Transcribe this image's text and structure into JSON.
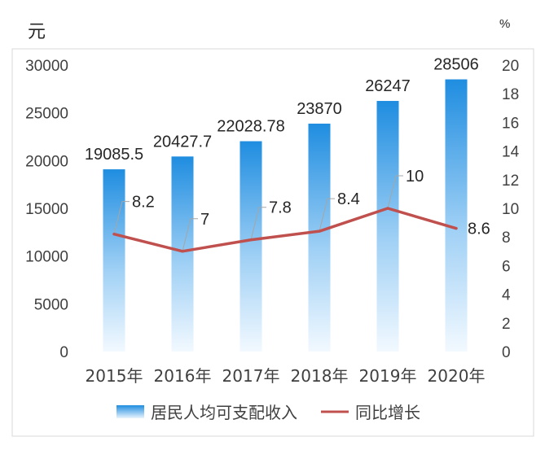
{
  "chart_data": {
    "type": "bar+line",
    "categories": [
      "2015年",
      "2016年",
      "2017年",
      "2018年",
      "2019年",
      "2020年"
    ],
    "series": [
      {
        "name": "居民人均可支配收入",
        "type": "bar",
        "axis": "left",
        "values": [
          19085.5,
          20427.7,
          22028.78,
          23870,
          26247,
          28506
        ],
        "labels": [
          "19085.5",
          "20427.7",
          "22028.78",
          "23870",
          "26247",
          "28506"
        ]
      },
      {
        "name": "同比增长",
        "type": "line",
        "axis": "right",
        "values": [
          8.2,
          7,
          7.8,
          8.4,
          10,
          8.6
        ],
        "labels": [
          "8.2",
          "7",
          "7.8",
          "8.4",
          "10",
          "8.6"
        ]
      }
    ],
    "y_left": {
      "unit": "元",
      "min": 0,
      "max": 30000,
      "ticks": [
        0,
        5000,
        10000,
        15000,
        20000,
        25000,
        30000
      ]
    },
    "y_right": {
      "unit": "%",
      "min": 0,
      "max": 20,
      "ticks": [
        0,
        2,
        4,
        6,
        8,
        10,
        12,
        14,
        16,
        18,
        20
      ]
    },
    "legend_position": "bottom",
    "grid": false,
    "colors": {
      "bar_top": "#1f8de0",
      "bar_bottom": "#f2f9ff",
      "line": "#c0504d",
      "leader": "#a6a6a6",
      "border": "#d9d9d9"
    }
  }
}
